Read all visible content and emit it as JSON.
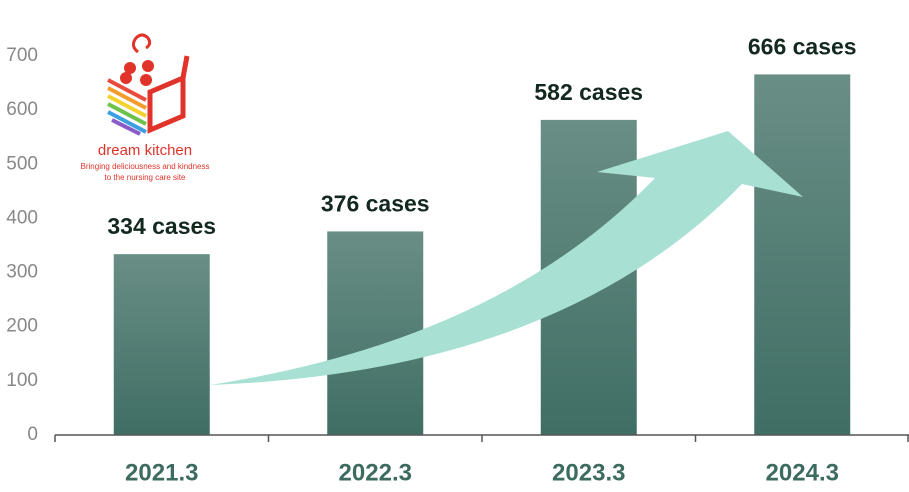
{
  "chart_data": {
    "type": "bar",
    "categories": [
      "2021.3",
      "2022.3",
      "2023.3",
      "2024.3"
    ],
    "values": [
      334,
      376,
      582,
      666
    ],
    "value_labels": [
      "334 cases",
      "376 cases",
      "582 cases",
      "666 cases"
    ],
    "color": "#3f6e64",
    "ylim": [
      0,
      700
    ],
    "yticks": [
      0,
      100,
      200,
      300,
      400,
      500,
      600,
      700
    ],
    "grid": false
  },
  "logo": {
    "name": "dream kitchen",
    "tagline": [
      "Bringing deliciousness and kindness",
      "to the nursing care site"
    ]
  }
}
